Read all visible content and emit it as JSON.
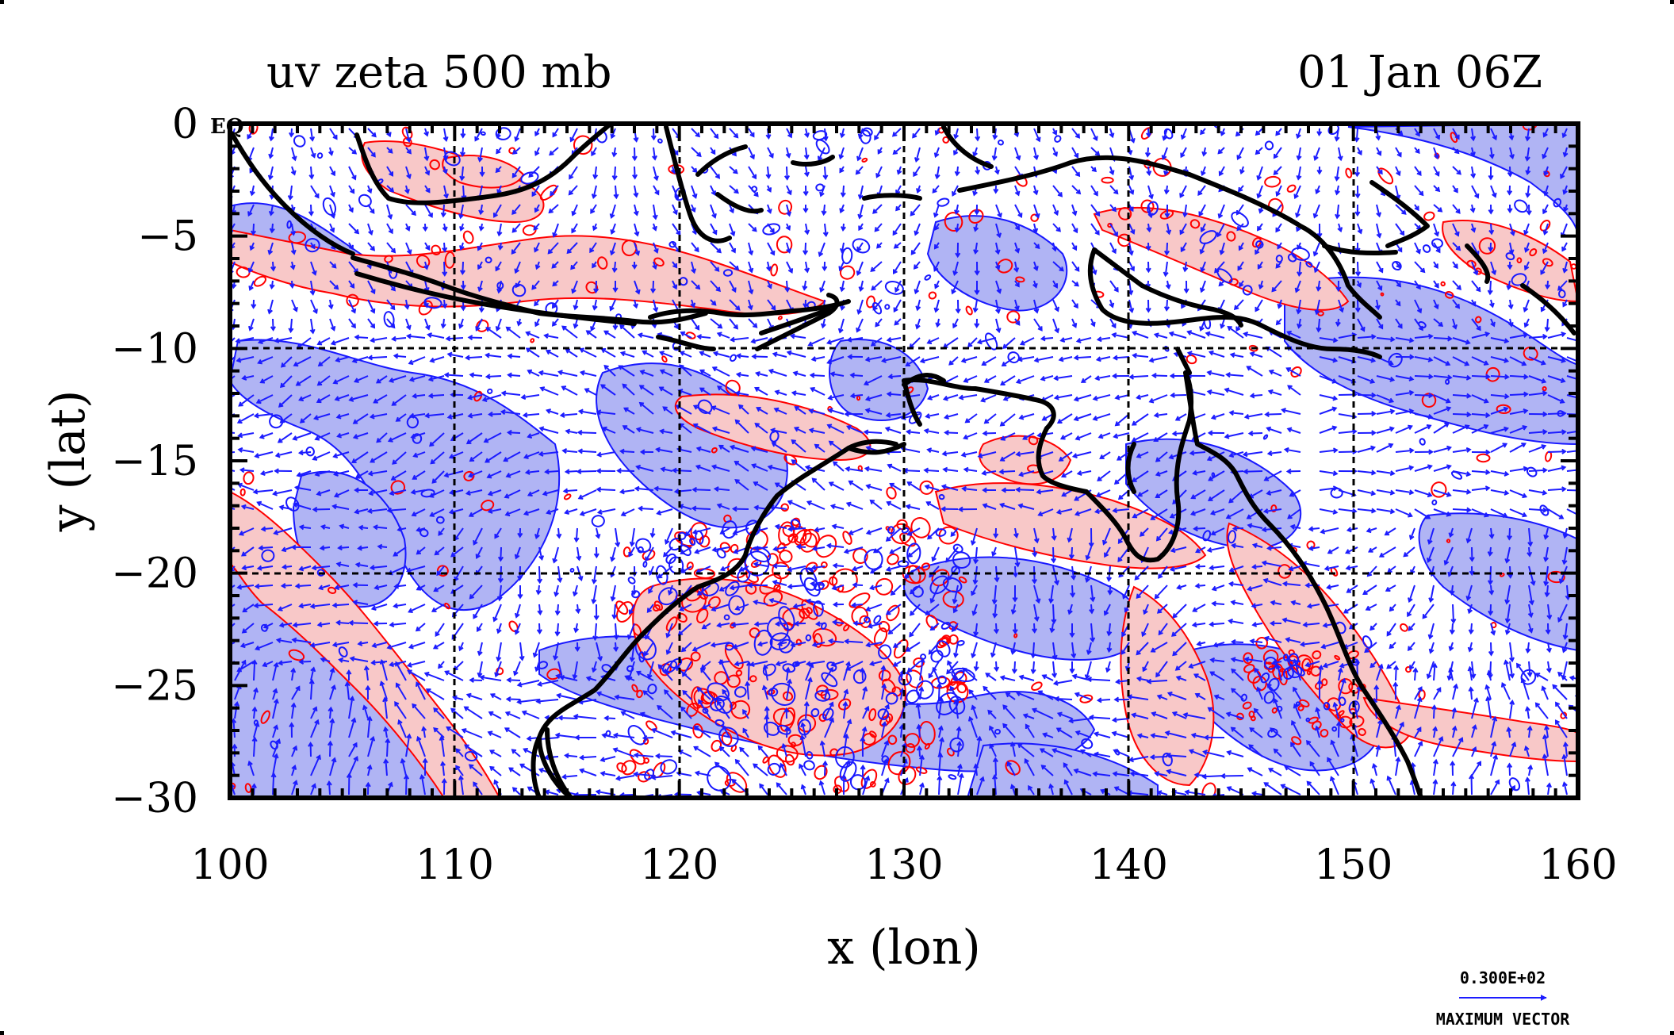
{
  "title_left": "uv zeta 500 mb",
  "title_right": "01 Jan 06Z",
  "corner_label": "EQ",
  "colors": {
    "positive_fill": "#f8c8c8",
    "positive_line": "#ff0000",
    "negative_fill": "#b0b4f4",
    "negative_line": "#1818ff",
    "vector": "#1c1cff",
    "coast": "#000000",
    "grid": "#000000"
  },
  "chart_data": {
    "type": "map",
    "xlabel": "x (lon)",
    "ylabel": "y (lat)",
    "xlim": [
      100,
      160
    ],
    "ylim": [
      -30,
      0
    ],
    "xticks": [
      100,
      110,
      120,
      130,
      140,
      150,
      160
    ],
    "yticks": [
      0,
      -5,
      -10,
      -15,
      -20,
      -25,
      -30
    ],
    "xtick_labels": [
      "100",
      "110",
      "120",
      "130",
      "140",
      "150",
      "160"
    ],
    "ytick_labels": [
      "0",
      "−5",
      "−10",
      "−15",
      "−20",
      "−25",
      "−30"
    ],
    "grid": true,
    "grid_style": "dashed",
    "legend": {
      "value_label": "0.300E+02",
      "caption": "MAXIMUM VECTOR",
      "placement": "bottom-right"
    }
  }
}
